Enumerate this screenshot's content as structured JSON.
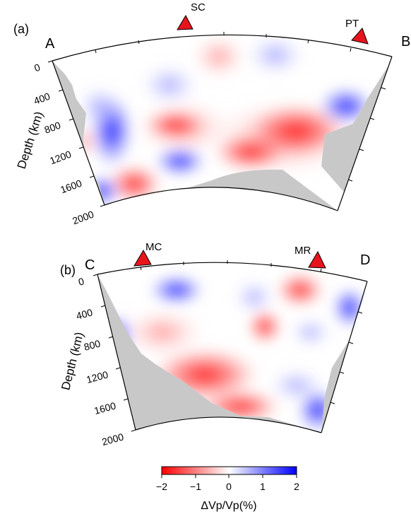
{
  "panels": [
    {
      "tag": "(a)",
      "start_label": "A",
      "end_label": "B",
      "stations": [
        "SC",
        "PT"
      ],
      "depth_axis": {
        "title": "Depth (km)",
        "ticks": [
          "0",
          "400",
          "800",
          "1200",
          "1600",
          "2000"
        ]
      }
    },
    {
      "tag": "(b)",
      "start_label": "C",
      "end_label": "D",
      "stations": [
        "MC",
        "MR"
      ],
      "depth_axis": {
        "title": "Depth (km)",
        "ticks": [
          "0",
          "400",
          "800",
          "1200",
          "1600",
          "2000"
        ]
      }
    }
  ],
  "colorbar": {
    "title": "ΔVp/Vp(%)",
    "ticks": [
      "−2",
      "−1",
      "0",
      "1",
      "2"
    ],
    "range": [
      -2,
      2
    ],
    "colors": {
      "slow": "#ff0000",
      "neutral": "#ffffff",
      "fast": "#0000ff"
    }
  },
  "colors": {
    "no_coverage": "#c8c8c8",
    "station_marker": "#e8141c"
  }
}
